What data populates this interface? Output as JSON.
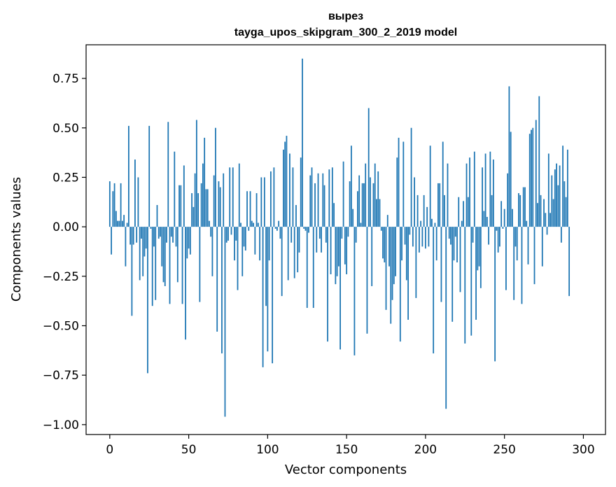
{
  "chart_data": {
    "type": "bar",
    "title_line1": "вырез",
    "title_line2": "tayga_upos_skipgram_300_2_2019 model",
    "xlabel": "Vector components",
    "ylabel": "Components values",
    "xlim": [
      -15,
      314
    ],
    "ylim": [
      -1.05,
      0.92
    ],
    "xticks": [
      0,
      50,
      100,
      150,
      200,
      250,
      300
    ],
    "yticks": [
      -1.0,
      -0.75,
      -0.5,
      -0.25,
      0.0,
      0.25,
      0.5,
      0.75
    ],
    "ytick_labels": [
      "−1.00",
      "−0.75",
      "−0.50",
      "−0.25",
      "0.00",
      "0.25",
      "0.50",
      "0.75"
    ],
    "bar_color": "#1f77b4",
    "values": [
      0.23,
      -0.14,
      0.18,
      0.22,
      0.08,
      0.03,
      0.03,
      0.22,
      0.03,
      0.06,
      -0.2,
      0.02,
      0.51,
      -0.09,
      -0.45,
      -0.09,
      0.34,
      -0.08,
      0.25,
      -0.27,
      -0.06,
      -0.25,
      -0.15,
      -0.11,
      -0.74,
      0.51,
      -0.01,
      -0.4,
      -0.1,
      -0.37,
      0.11,
      -0.06,
      -0.05,
      -0.2,
      -0.28,
      -0.3,
      -0.08,
      0.53,
      -0.39,
      -0.05,
      -0.08,
      0.38,
      -0.1,
      -0.28,
      0.21,
      0.21,
      -0.39,
      0.31,
      -0.57,
      -0.16,
      -0.11,
      -0.14,
      0.17,
      0.1,
      0.27,
      0.54,
      0.17,
      -0.38,
      0.22,
      0.32,
      0.45,
      0.19,
      0.19,
      0.03,
      -0.05,
      -0.25,
      0.26,
      0.5,
      -0.53,
      0.23,
      0.2,
      -0.64,
      0.27,
      -0.96,
      -0.08,
      -0.07,
      0.3,
      -0.04,
      0.3,
      -0.17,
      -0.07,
      -0.32,
      0.32,
      0.02,
      -0.25,
      -0.1,
      -0.12,
      0.18,
      -0.02,
      0.18,
      0.03,
      0.02,
      -0.14,
      0.17,
      0.02,
      -0.17,
      0.25,
      -0.71,
      0.25,
      -0.4,
      -0.63,
      -0.17,
      0.28,
      -0.69,
      0.3,
      -0.01,
      -0.02,
      0.03,
      -0.06,
      -0.35,
      0.39,
      0.43,
      0.46,
      -0.27,
      0.37,
      -0.08,
      0.3,
      -0.26,
      0.11,
      -0.23,
      -0.13,
      0.35,
      0.85,
      -0.01,
      -0.02,
      -0.41,
      -0.03,
      0.26,
      0.3,
      -0.41,
      0.22,
      -0.13,
      0.27,
      -0.06,
      -0.13,
      0.27,
      0.21,
      -0.08,
      -0.58,
      0.29,
      -0.24,
      0.3,
      0.12,
      -0.29,
      -0.25,
      -0.2,
      -0.62,
      -0.06,
      0.33,
      -0.19,
      -0.24,
      -0.05,
      0.23,
      0.41,
      0.09,
      -0.65,
      -0.08,
      0.18,
      0.26,
      0.02,
      0.22,
      0.22,
      0.32,
      -0.54,
      0.6,
      0.25,
      -0.3,
      0.22,
      0.32,
      0.14,
      0.28,
      0.14,
      -0.02,
      -0.16,
      -0.18,
      -0.42,
      0.06,
      -0.2,
      -0.49,
      -0.37,
      -0.29,
      -0.25,
      0.35,
      0.45,
      -0.58,
      -0.17,
      0.43,
      -0.09,
      -0.27,
      -0.47,
      -0.04,
      0.5,
      -0.1,
      0.25,
      -0.36,
      0.16,
      -0.13,
      0.03,
      -0.1,
      0.16,
      -0.11,
      0.1,
      -0.1,
      0.41,
      0.04,
      -0.64,
      0.02,
      -0.17,
      0.22,
      0.22,
      -0.38,
      0.43,
      0.16,
      -0.92,
      0.32,
      -0.06,
      -0.09,
      -0.48,
      -0.17,
      -0.05,
      -0.18,
      0.15,
      -0.33,
      0.03,
      0.13,
      -0.59,
      0.32,
      0.15,
      0.35,
      -0.55,
      -0.08,
      0.38,
      -0.47,
      -0.22,
      -0.2,
      -0.31,
      0.3,
      0.08,
      0.37,
      0.05,
      -0.09,
      0.38,
      0.16,
      0.34,
      -0.68,
      -0.02,
      -0.13,
      -0.1,
      0.13,
      -0.01,
      0.09,
      -0.32,
      0.27,
      0.71,
      0.48,
      0.09,
      -0.37,
      -0.1,
      -0.17,
      0.17,
      0.16,
      -0.39,
      0.2,
      0.2,
      0.03,
      -0.19,
      0.47,
      0.49,
      0.5,
      -0.29,
      0.54,
      0.12,
      0.66,
      0.16,
      -0.2,
      0.14,
      0.07,
      -0.04,
      0.37,
      0.07,
      0.26,
      0.14,
      0.29,
      0.32,
      0.21,
      0.31,
      -0.08,
      0.41,
      0.23,
      0.15,
      0.39,
      -0.35
    ]
  }
}
